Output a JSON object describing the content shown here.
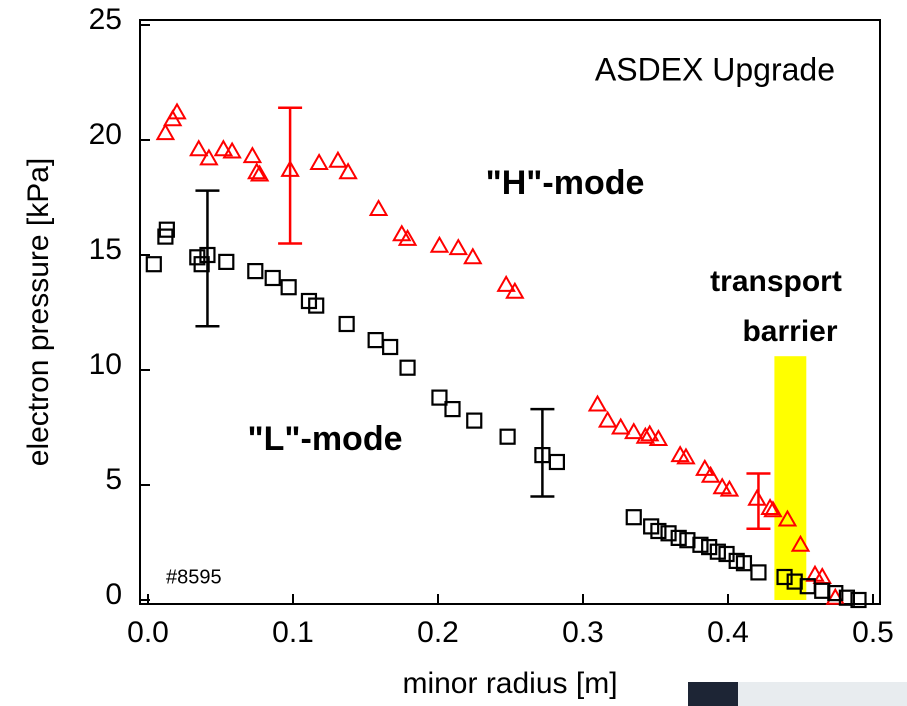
{
  "chart_data": {
    "type": "scatter",
    "x_label": "minor radius [m]",
    "y_label": "electron pressure [kPa]",
    "annotations": [
      "ASDEX Upgrade",
      "\"H\"-mode",
      "\"L\"-mode",
      "transport",
      "barrier",
      "#8595"
    ],
    "xlim": [
      0,
      0.5
    ],
    "xticks": [
      {
        "value": 0,
        "label": "0.0"
      },
      0.1,
      0.2,
      0.3,
      0.4,
      0.5
    ],
    "ylim": [
      0,
      25
    ],
    "yticks": [
      0,
      5,
      10,
      15,
      20,
      25
    ],
    "bands": [
      {
        "x0": 0.432,
        "x1": 0.454,
        "y0": 0,
        "y1": 10.6,
        "color": "#ffff00"
      }
    ],
    "series": [
      {
        "color": "#ff0000",
        "marker": "triangle",
        "x": [
          0.012,
          0.017,
          0.02,
          0.035,
          0.042,
          0.052,
          0.058,
          0.072,
          0.075,
          0.077,
          0.098,
          0.118,
          0.131,
          0.138,
          0.159,
          0.175,
          0.179,
          0.201,
          0.214,
          0.224,
          0.247,
          0.253,
          0.31,
          0.317,
          0.326,
          0.335,
          0.343,
          0.346,
          0.352,
          0.367,
          0.371,
          0.384,
          0.388,
          0.396,
          0.401,
          0.42,
          0.429,
          0.431,
          0.441,
          0.45,
          0.46,
          0.465,
          0.474
        ],
        "values": [
          20.3,
          20.9,
          21.2,
          19.6,
          19.2,
          19.6,
          19.5,
          19.3,
          18.6,
          18.5,
          18.7,
          19.0,
          19.1,
          18.6,
          17.0,
          15.9,
          15.7,
          15.4,
          15.3,
          14.9,
          13.7,
          13.4,
          8.5,
          7.8,
          7.5,
          7.3,
          7.1,
          7.2,
          7.0,
          6.3,
          6.2,
          5.7,
          5.4,
          4.9,
          4.8,
          4.4,
          4.0,
          3.9,
          3.5,
          2.4,
          1.1,
          1.0,
          0.1
        ],
        "error_bars": [
          {
            "x": 0.098,
            "y": 18.45,
            "err": 2.95
          },
          {
            "x": 0.421,
            "y": 4.3,
            "err": 1.2
          }
        ]
      },
      {
        "color": "#000000",
        "marker": "square",
        "x": [
          0.004,
          0.012,
          0.013,
          0.034,
          0.037,
          0.041,
          0.054,
          0.074,
          0.086,
          0.097,
          0.111,
          0.116,
          0.137,
          0.157,
          0.167,
          0.179,
          0.201,
          0.21,
          0.225,
          0.248,
          0.272,
          0.282,
          0.335,
          0.347,
          0.352,
          0.359,
          0.366,
          0.372,
          0.381,
          0.387,
          0.393,
          0.399,
          0.406,
          0.411,
          0.421,
          0.439,
          0.446,
          0.455,
          0.465,
          0.474,
          0.482,
          0.49
        ],
        "values": [
          14.6,
          15.8,
          16.1,
          14.9,
          14.6,
          15.0,
          14.7,
          14.3,
          14.0,
          13.6,
          13.0,
          12.8,
          12.0,
          11.3,
          11.0,
          10.1,
          8.8,
          8.3,
          7.8,
          7.1,
          6.3,
          6.0,
          3.6,
          3.2,
          3.0,
          2.9,
          2.7,
          2.6,
          2.4,
          2.3,
          2.1,
          2.0,
          1.7,
          1.6,
          1.2,
          1.0,
          0.8,
          0.6,
          0.4,
          0.3,
          0.1,
          0.0
        ],
        "error_bars": [
          {
            "x": 0.041,
            "y": 14.85,
            "err": 2.95
          },
          {
            "x": 0.272,
            "y": 6.4,
            "err": 1.9
          }
        ]
      }
    ]
  }
}
